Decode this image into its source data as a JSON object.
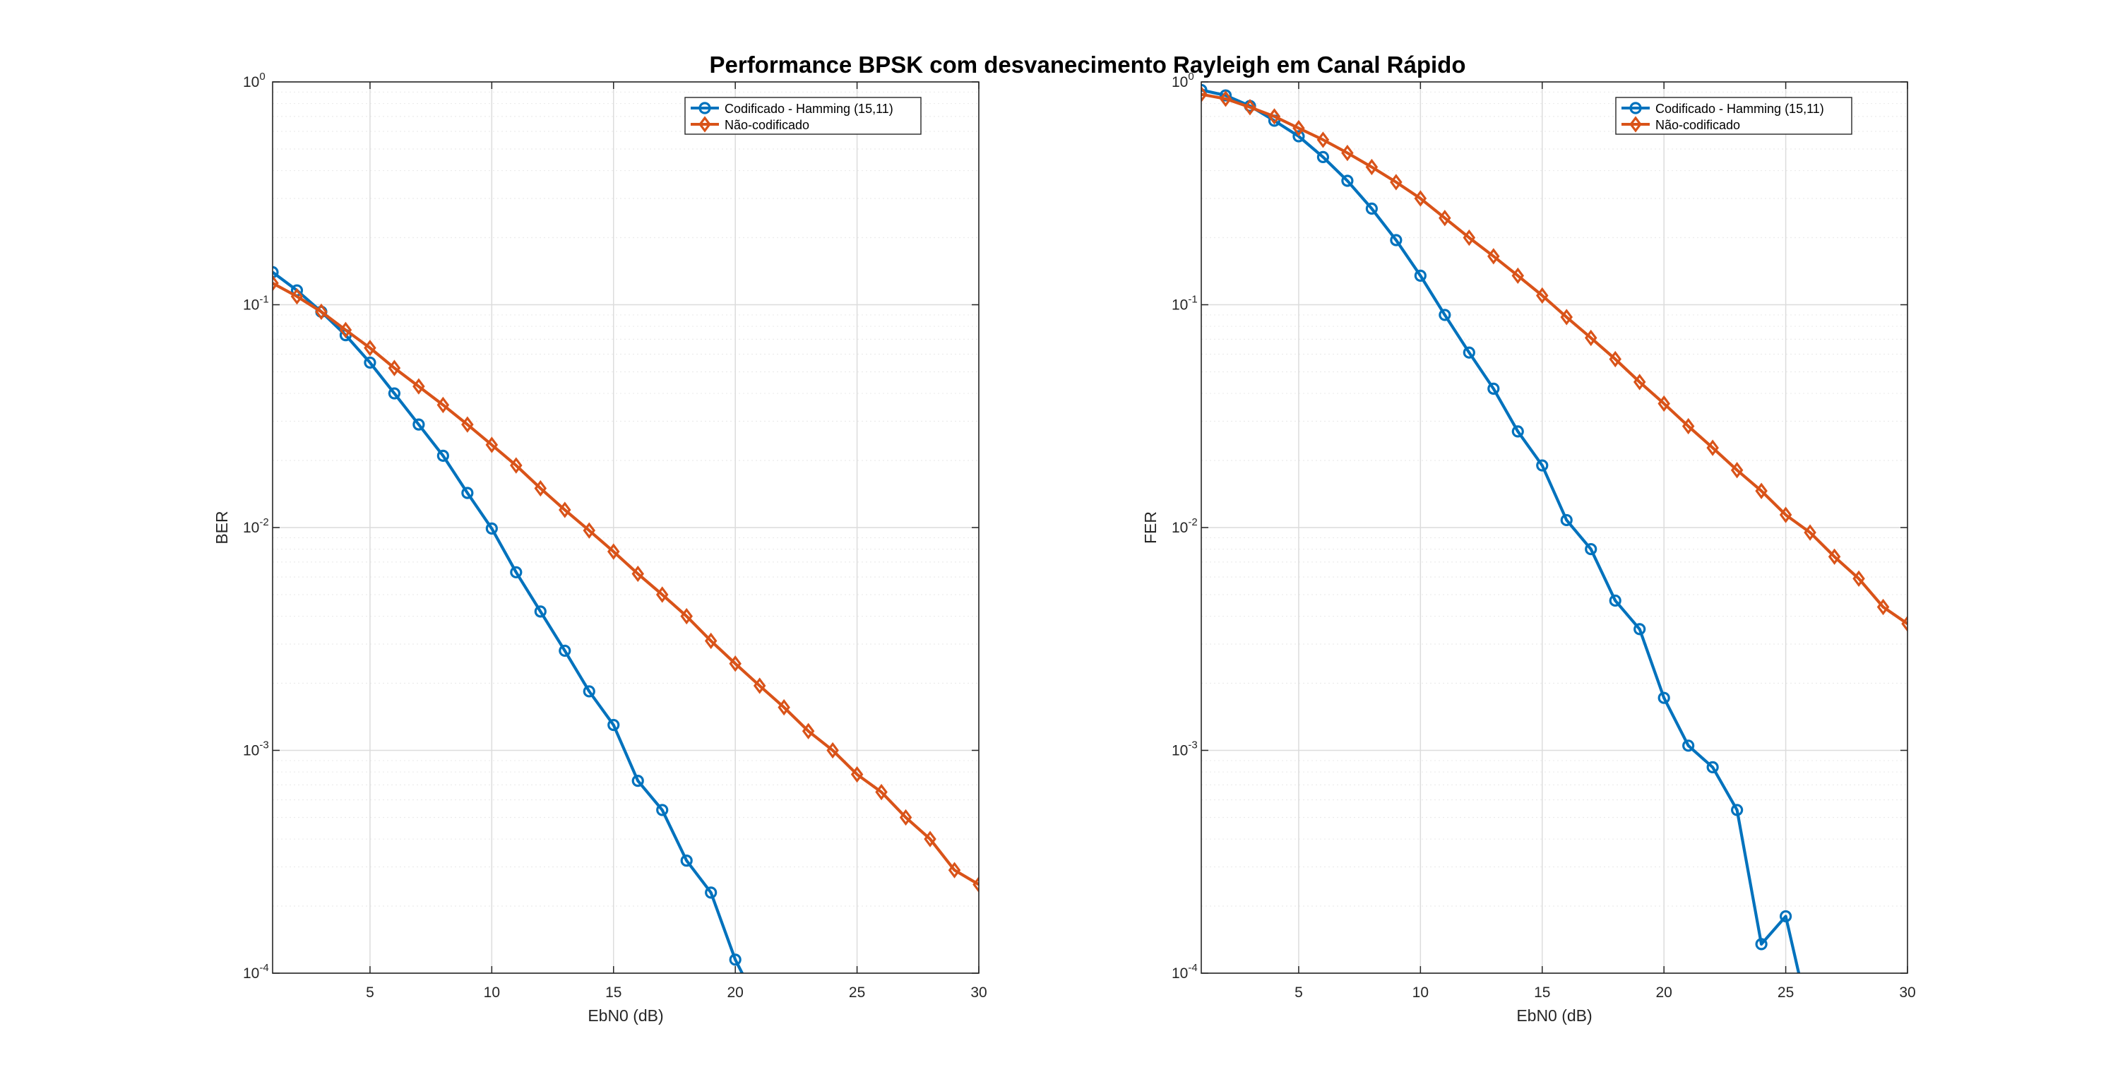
{
  "title": "Performance BPSK com desvanecimento Rayleigh em Canal Rápido",
  "colors": {
    "coded": "#0072BD",
    "uncoded": "#D95319",
    "grid": "#dcdcdc",
    "axis": "#262626"
  },
  "chart_data": [
    {
      "type": "line",
      "xlabel": "EbN0 (dB)",
      "ylabel": "BER",
      "xlim": [
        1,
        30
      ],
      "ylim": [
        0.0001,
        1
      ],
      "yscale": "log",
      "grid": true,
      "legend_position": "top-right",
      "xticks": [
        5,
        10,
        15,
        20,
        25,
        30
      ],
      "yticks": [
        {
          "base": "10",
          "exp": "-4"
        },
        {
          "base": "10",
          "exp": "-3"
        },
        {
          "base": "10",
          "exp": "-2"
        },
        {
          "base": "10",
          "exp": "-1"
        },
        {
          "base": "10",
          "exp": "0"
        }
      ],
      "series": [
        {
          "name": "Codificado - Hamming (15,11)",
          "marker": "circle",
          "x": [
            1,
            2,
            3,
            4,
            5,
            6,
            7,
            8,
            9,
            10,
            11,
            12,
            13,
            14,
            15,
            16,
            17,
            18,
            19,
            20,
            21
          ],
          "y": [
            0.14,
            0.116,
            0.093,
            0.073,
            0.055,
            0.04,
            0.029,
            0.021,
            0.0143,
            0.0099,
            0.0063,
            0.0042,
            0.0028,
            0.00184,
            0.0013,
            0.00073,
            0.00054,
            0.00032,
            0.00023,
            0.000115,
            7e-05
          ]
        },
        {
          "name": "Não-codificado",
          "marker": "diamond",
          "x": [
            1,
            2,
            3,
            4,
            5,
            6,
            7,
            8,
            9,
            10,
            11,
            12,
            13,
            14,
            15,
            16,
            17,
            18,
            19,
            20,
            21,
            22,
            23,
            24,
            25,
            26,
            27,
            28,
            29,
            30
          ],
          "y": [
            0.125,
            0.109,
            0.093,
            0.077,
            0.064,
            0.052,
            0.043,
            0.0355,
            0.029,
            0.0235,
            0.019,
            0.015,
            0.012,
            0.0097,
            0.0078,
            0.0062,
            0.005,
            0.004,
            0.0031,
            0.00245,
            0.00195,
            0.00156,
            0.00122,
            0.001,
            0.00078,
            0.00065,
            0.0005,
            0.0004,
            0.00029,
            0.00025
          ]
        }
      ]
    },
    {
      "type": "line",
      "xlabel": "EbN0 (dB)",
      "ylabel": "FER",
      "xlim": [
        1,
        30
      ],
      "ylim": [
        0.0001,
        1
      ],
      "yscale": "log",
      "grid": true,
      "legend_position": "top-right",
      "xticks": [
        5,
        10,
        15,
        20,
        25,
        30
      ],
      "yticks": [
        {
          "base": "10",
          "exp": "-4"
        },
        {
          "base": "10",
          "exp": "-3"
        },
        {
          "base": "10",
          "exp": "-2"
        },
        {
          "base": "10",
          "exp": "-1"
        },
        {
          "base": "10",
          "exp": "0"
        }
      ],
      "series": [
        {
          "name": "Codificado - Hamming (15,11)",
          "marker": "circle",
          "x": [
            1,
            2,
            3,
            4,
            5,
            6,
            7,
            8,
            9,
            10,
            11,
            12,
            13,
            14,
            15,
            16,
            17,
            18,
            19,
            20,
            21,
            22,
            23,
            24,
            25,
            26
          ],
          "y": [
            0.92,
            0.87,
            0.78,
            0.67,
            0.57,
            0.46,
            0.36,
            0.27,
            0.195,
            0.135,
            0.09,
            0.061,
            0.042,
            0.027,
            0.019,
            0.0108,
            0.008,
            0.0047,
            0.0035,
            0.00172,
            0.00105,
            0.00084,
            0.00054,
            0.000135,
            0.00018,
            6e-05
          ]
        },
        {
          "name": "Não-codificado",
          "marker": "diamond",
          "x": [
            1,
            2,
            3,
            4,
            5,
            6,
            7,
            8,
            9,
            10,
            11,
            12,
            13,
            14,
            15,
            16,
            17,
            18,
            19,
            20,
            21,
            22,
            23,
            24,
            25,
            26,
            27,
            28,
            29,
            30
          ],
          "y": [
            0.88,
            0.84,
            0.77,
            0.7,
            0.62,
            0.55,
            0.48,
            0.415,
            0.355,
            0.3,
            0.245,
            0.2,
            0.165,
            0.135,
            0.11,
            0.088,
            0.071,
            0.057,
            0.045,
            0.036,
            0.0285,
            0.0228,
            0.0181,
            0.0146,
            0.0114,
            0.0095,
            0.0074,
            0.0059,
            0.0044,
            0.0037
          ]
        }
      ]
    }
  ]
}
